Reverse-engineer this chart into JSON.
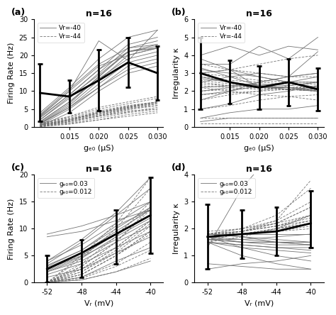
{
  "panel_a": {
    "label": "(a)",
    "title": "n=16",
    "xlabel": "gₑ₀ (μS)",
    "ylabel": "Firing Rate (Hz)",
    "x": [
      0.01,
      0.015,
      0.02,
      0.025,
      0.03
    ],
    "xticks": [
      0.015,
      0.02,
      0.025,
      0.03
    ],
    "xlim": [
      0.009,
      0.031
    ],
    "solid_lines": [
      [
        1.0,
        6.0,
        13.0,
        20.0,
        22.0
      ],
      [
        1.5,
        7.0,
        14.0,
        21.0,
        23.0
      ],
      [
        2.0,
        8.0,
        15.0,
        22.0,
        24.0
      ],
      [
        2.5,
        9.0,
        16.0,
        23.0,
        25.0
      ],
      [
        3.0,
        10.0,
        17.0,
        20.0,
        22.0
      ],
      [
        1.0,
        5.5,
        12.0,
        18.0,
        20.0
      ],
      [
        0.5,
        5.0,
        11.0,
        17.0,
        19.0
      ],
      [
        4.0,
        11.0,
        19.0,
        25.0,
        27.0
      ],
      [
        2.0,
        8.5,
        14.5,
        21.0,
        22.5
      ],
      [
        1.5,
        7.0,
        13.5,
        19.0,
        21.0
      ],
      [
        3.5,
        10.5,
        17.5,
        22.0,
        23.0
      ],
      [
        0.8,
        5.5,
        11.0,
        16.0,
        18.0
      ],
      [
        1.2,
        6.5,
        14.0,
        21.0,
        22.0
      ],
      [
        2.8,
        9.0,
        16.0,
        21.0,
        22.0
      ],
      [
        3.2,
        10.0,
        24.0,
        18.5,
        27.0
      ],
      [
        0.3,
        4.0,
        10.0,
        15.0,
        17.0
      ]
    ],
    "dashed_lines": [
      [
        0.3,
        1.5,
        3.0,
        4.5,
        5.0
      ],
      [
        0.5,
        2.0,
        4.0,
        5.5,
        6.5
      ],
      [
        0.2,
        1.2,
        2.5,
        4.0,
        5.0
      ],
      [
        0.8,
        2.5,
        4.5,
        6.0,
        7.0
      ],
      [
        0.4,
        1.8,
        3.5,
        5.2,
        6.0
      ],
      [
        0.1,
        1.0,
        2.0,
        3.5,
        4.5
      ],
      [
        0.6,
        2.2,
        4.2,
        5.8,
        7.0
      ],
      [
        0.9,
        2.8,
        5.0,
        6.5,
        8.0
      ],
      [
        0.3,
        1.5,
        3.2,
        4.8,
        6.0
      ],
      [
        0.7,
        2.0,
        4.0,
        5.5,
        7.0
      ],
      [
        0.2,
        1.5,
        3.0,
        4.2,
        5.5
      ],
      [
        1.0,
        3.0,
        5.5,
        7.0,
        8.5
      ],
      [
        0.4,
        1.8,
        3.5,
        5.0,
        6.5
      ],
      [
        0.5,
        2.0,
        3.8,
        5.3,
        6.8
      ],
      [
        0.6,
        2.2,
        4.0,
        5.7,
        7.0
      ],
      [
        0.1,
        0.8,
        2.0,
        3.0,
        4.0
      ]
    ],
    "mean": [
      9.5,
      8.5,
      13.0,
      18.0,
      15.0
    ],
    "err_low": [
      8.0,
      4.5,
      8.5,
      7.0,
      7.5
    ],
    "err_high": [
      8.0,
      4.5,
      8.5,
      7.0,
      7.5
    ],
    "ylim": [
      0,
      30
    ],
    "yticks": [
      0,
      5,
      10,
      15,
      20,
      25,
      30
    ],
    "legend_solid": "Vr=-40",
    "legend_dashed": "Vr=-44"
  },
  "panel_b": {
    "label": "(b)",
    "title": "n=16",
    "xlabel": "gₑ₀ (μS)",
    "ylabel": "Irregularity κ",
    "x": [
      0.01,
      0.015,
      0.02,
      0.025,
      0.03
    ],
    "xticks": [
      0.015,
      0.02,
      0.025,
      0.03
    ],
    "xlim": [
      0.009,
      0.031
    ],
    "solid_lines": [
      [
        3.0,
        3.2,
        2.2,
        2.2,
        2.0
      ],
      [
        3.2,
        3.0,
        2.8,
        2.5,
        2.5
      ],
      [
        1.0,
        1.3,
        1.8,
        2.0,
        2.3
      ],
      [
        2.5,
        2.8,
        3.0,
        2.8,
        4.2
      ],
      [
        3.5,
        3.5,
        4.5,
        3.8,
        5.0
      ],
      [
        2.8,
        2.5,
        2.3,
        2.2,
        2.0
      ],
      [
        1.5,
        2.0,
        2.5,
        2.8,
        3.0
      ],
      [
        2.2,
        2.3,
        2.4,
        2.3,
        2.5
      ],
      [
        4.0,
        4.5,
        4.0,
        4.5,
        4.3
      ],
      [
        3.8,
        3.2,
        2.8,
        2.5,
        2.2
      ],
      [
        2.0,
        2.2,
        2.5,
        2.8,
        3.0
      ],
      [
        0.5,
        0.8,
        1.0,
        1.0,
        1.2
      ],
      [
        3.3,
        2.8,
        2.3,
        2.1,
        2.0
      ],
      [
        2.7,
        2.5,
        2.3,
        2.2,
        2.1
      ],
      [
        1.8,
        2.0,
        2.3,
        2.5,
        2.8
      ],
      [
        0.3,
        0.5,
        0.5,
        0.5,
        0.5
      ]
    ],
    "dashed_lines": [
      [
        2.2,
        2.0,
        1.8,
        1.7,
        1.5
      ],
      [
        2.5,
        2.3,
        2.2,
        2.1,
        2.0
      ],
      [
        1.8,
        1.9,
        2.0,
        2.1,
        2.1
      ],
      [
        3.0,
        2.8,
        2.6,
        2.5,
        2.5
      ],
      [
        2.8,
        2.5,
        2.3,
        2.2,
        2.2
      ],
      [
        0.2,
        0.2,
        0.2,
        0.2,
        0.2
      ],
      [
        2.0,
        2.1,
        2.2,
        2.2,
        2.3
      ],
      [
        2.3,
        2.2,
        2.1,
        2.1,
        2.0
      ],
      [
        3.5,
        3.2,
        3.0,
        2.8,
        2.8
      ],
      [
        2.6,
        2.4,
        2.2,
        2.1,
        2.0
      ],
      [
        1.5,
        1.8,
        2.0,
        2.3,
        2.5
      ],
      [
        0.5,
        0.5,
        0.5,
        0.5,
        0.5
      ],
      [
        2.8,
        2.6,
        2.5,
        2.4,
        2.4
      ],
      [
        3.0,
        3.2,
        3.5,
        3.8,
        4.0
      ],
      [
        2.4,
        2.3,
        2.2,
        2.1,
        2.1
      ],
      [
        1.0,
        1.2,
        1.5,
        1.7,
        1.8
      ]
    ],
    "mean": [
      3.0,
      2.5,
      2.2,
      2.5,
      2.1
    ],
    "err_low": [
      2.0,
      1.2,
      1.2,
      1.3,
      1.2
    ],
    "err_high": [
      2.0,
      1.2,
      1.2,
      1.3,
      1.2
    ],
    "ylim": [
      0,
      6
    ],
    "yticks": [
      0,
      1,
      2,
      3,
      4,
      5,
      6
    ],
    "legend_solid": "Vr=-40",
    "legend_dashed": "Vr=-44"
  },
  "panel_c": {
    "label": "(c)",
    "title": "n=16",
    "xlabel": "Vᵣ (mV)",
    "ylabel": "Firing Rate (Hz)",
    "x": [
      -52,
      -48,
      -44,
      -40
    ],
    "xticks": [
      -52,
      -48,
      -44,
      -40
    ],
    "xlim": [
      -53.5,
      -38.5
    ],
    "solid_lines": [
      [
        2.5,
        5.0,
        9.0,
        12.5
      ],
      [
        3.0,
        6.0,
        10.0,
        14.0
      ],
      [
        2.0,
        4.5,
        8.5,
        12.0
      ],
      [
        4.0,
        7.0,
        11.0,
        15.0
      ],
      [
        2.8,
        5.5,
        9.5,
        13.5
      ],
      [
        0.0,
        1.0,
        4.0,
        6.5
      ],
      [
        2.0,
        4.0,
        7.5,
        10.5
      ],
      [
        8.5,
        9.5,
        11.5,
        13.5
      ],
      [
        9.0,
        10.5,
        12.5,
        15.0
      ],
      [
        1.0,
        2.5,
        5.5,
        8.5
      ],
      [
        2.2,
        4.8,
        8.0,
        11.5
      ],
      [
        0.0,
        0.5,
        2.0,
        4.0
      ],
      [
        3.2,
        6.0,
        10.5,
        13.5
      ],
      [
        1.5,
        3.5,
        6.5,
        9.5
      ],
      [
        3.5,
        7.5,
        12.5,
        17.5
      ],
      [
        4.0,
        8.0,
        13.0,
        19.5
      ]
    ],
    "dashed_lines": [
      [
        0.0,
        2.0,
        6.0,
        11.0
      ],
      [
        0.0,
        3.0,
        7.5,
        13.5
      ],
      [
        0.0,
        1.5,
        5.0,
        9.0
      ],
      [
        0.0,
        3.5,
        8.5,
        15.0
      ],
      [
        0.0,
        2.5,
        6.5,
        11.5
      ],
      [
        0.0,
        0.8,
        3.0,
        6.0
      ],
      [
        0.0,
        2.5,
        6.5,
        11.5
      ],
      [
        0.0,
        0.5,
        2.0,
        4.5
      ],
      [
        0.0,
        1.5,
        5.0,
        9.5
      ],
      [
        2.5,
        5.0,
        9.0,
        14.0
      ],
      [
        0.0,
        2.0,
        5.5,
        10.5
      ],
      [
        0.0,
        1.0,
        3.5,
        7.5
      ],
      [
        0.0,
        3.0,
        7.5,
        14.0
      ],
      [
        0.0,
        1.5,
        5.0,
        9.5
      ],
      [
        0.0,
        4.5,
        10.0,
        17.5
      ],
      [
        0.0,
        5.0,
        11.0,
        19.5
      ]
    ],
    "mean": [
      2.5,
      5.5,
      9.0,
      12.5
    ],
    "err_low": [
      2.5,
      4.5,
      5.5,
      7.0
    ],
    "err_high": [
      2.5,
      2.5,
      4.5,
      7.0
    ],
    "ylim": [
      0,
      20
    ],
    "yticks": [
      0,
      5,
      10,
      15,
      20
    ],
    "legend_solid": "gₑ₀=0.03",
    "legend_dashed": "gₑ₀=0.012"
  },
  "panel_d": {
    "label": "(d)",
    "title": "n=16",
    "xlabel": "Vᵣ (mV)",
    "ylabel": "Irregularity κ",
    "x": [
      -52,
      -48,
      -44,
      -40
    ],
    "xticks": [
      -52,
      -48,
      -44,
      -40
    ],
    "xlim": [
      -53.5,
      -38.5
    ],
    "solid_lines": [
      [
        1.7,
        1.5,
        1.5,
        1.5
      ],
      [
        1.8,
        1.8,
        1.8,
        1.8
      ],
      [
        1.5,
        1.3,
        1.2,
        1.1
      ],
      [
        1.6,
        1.6,
        1.7,
        1.8
      ],
      [
        1.5,
        1.4,
        1.3,
        1.2
      ],
      [
        1.5,
        1.0,
        0.7,
        0.5
      ],
      [
        1.7,
        1.6,
        1.5,
        1.4
      ],
      [
        1.8,
        1.7,
        1.6,
        1.5
      ],
      [
        0.5,
        0.7,
        0.8,
        1.0
      ],
      [
        1.6,
        1.5,
        1.5,
        1.5
      ],
      [
        1.5,
        1.4,
        1.3,
        1.3
      ],
      [
        1.7,
        1.3,
        1.0,
        0.8
      ],
      [
        1.6,
        1.5,
        1.4,
        1.4
      ],
      [
        1.8,
        1.7,
        1.5,
        1.4
      ],
      [
        0.7,
        0.6,
        0.5,
        0.5
      ],
      [
        1.3,
        3.5,
        5.0,
        4.5
      ]
    ],
    "dashed_lines": [
      [
        1.8,
        1.8,
        2.0,
        2.2
      ],
      [
        1.9,
        2.0,
        2.2,
        2.5
      ],
      [
        1.7,
        1.8,
        1.9,
        2.0
      ],
      [
        1.8,
        1.9,
        2.1,
        2.3
      ],
      [
        1.8,
        1.8,
        2.0,
        2.2
      ],
      [
        1.8,
        1.9,
        2.1,
        2.4
      ],
      [
        1.7,
        1.8,
        1.9,
        2.1
      ],
      [
        1.5,
        1.7,
        2.0,
        2.5
      ],
      [
        1.8,
        1.9,
        2.2,
        2.8
      ],
      [
        1.8,
        2.0,
        2.3,
        3.0
      ],
      [
        1.7,
        1.9,
        2.2,
        2.8
      ],
      [
        1.6,
        1.8,
        2.0,
        2.5
      ],
      [
        1.8,
        1.9,
        2.1,
        2.5
      ],
      [
        1.7,
        1.8,
        2.0,
        2.3
      ],
      [
        1.8,
        2.0,
        2.5,
        3.5
      ],
      [
        1.7,
        1.9,
        2.3,
        3.8
      ]
    ],
    "mean": [
      1.7,
      1.8,
      1.9,
      2.2
    ],
    "err_low": [
      1.2,
      0.9,
      0.9,
      0.9
    ],
    "err_high": [
      1.2,
      0.9,
      0.9,
      1.2
    ],
    "ylim": [
      0,
      4
    ],
    "yticks": [
      0,
      1,
      2,
      3,
      4
    ],
    "legend_solid": "gₑ₀=0.03",
    "legend_dashed": "gₑ₀=0.012"
  },
  "thin_linewidth": 0.6,
  "thick_linewidth": 2.0,
  "thin_color": "0.45",
  "bg_color": "white"
}
